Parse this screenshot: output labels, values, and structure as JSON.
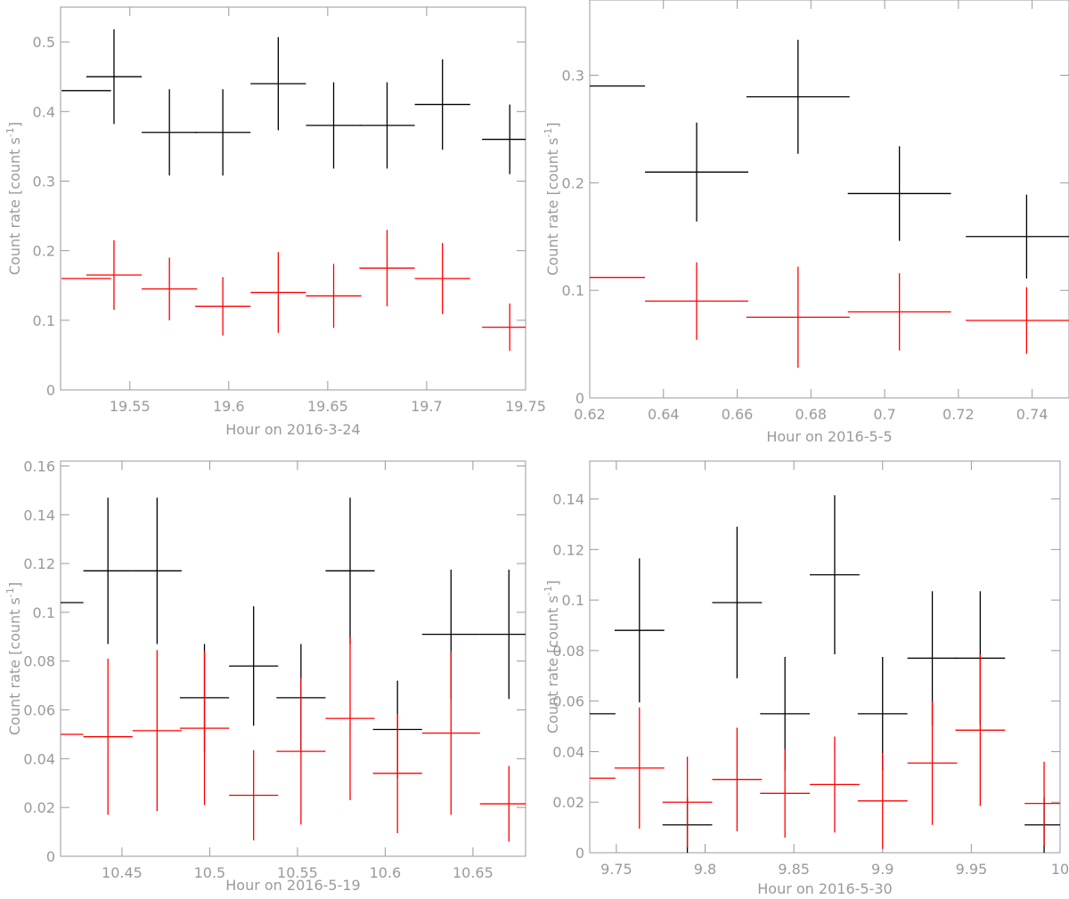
{
  "colors": {
    "series_black": "#000000",
    "series_red": "#ff0000",
    "axes": "#9a9a9a"
  },
  "chart_data": [
    {
      "type": "scatter",
      "error_bars": true,
      "xlabel": "Hour on 2016-3-24",
      "ylabel": "Count rate [count s",
      "ylabel_sup": "-1",
      "ylabel_end": "]",
      "xlim": [
        19.515,
        19.75
      ],
      "ylim": [
        0,
        0.55
      ],
      "xticks": [
        19.55,
        19.6,
        19.65,
        19.7,
        19.75
      ],
      "xtick_labels": [
        "19.55",
        "19.6",
        "19.65",
        "19.7",
        "19.75"
      ],
      "yticks": [
        0,
        0.1,
        0.2,
        0.3,
        0.4,
        0.5
      ],
      "ytick_labels": [
        "0",
        "0.1",
        "0.2",
        "0.3",
        "0.4",
        "0.5"
      ],
      "series": [
        {
          "color": "#000000",
          "points": [
            {
              "x": 19.528,
              "xerr": 0.0125,
              "y": 0.43,
              "yerr": 0
            },
            {
              "x": 19.542,
              "xerr": 0.014,
              "y": 0.45,
              "yerr": 0.068
            },
            {
              "x": 19.57,
              "xerr": 0.014,
              "y": 0.37,
              "yerr": 0.062
            },
            {
              "x": 19.597,
              "xerr": 0.014,
              "y": 0.37,
              "yerr": 0.062
            },
            {
              "x": 19.625,
              "xerr": 0.014,
              "y": 0.44,
              "yerr": 0.067
            },
            {
              "x": 19.653,
              "xerr": 0.014,
              "y": 0.38,
              "yerr": 0.062
            },
            {
              "x": 19.68,
              "xerr": 0.014,
              "y": 0.38,
              "yerr": 0.062
            },
            {
              "x": 19.708,
              "xerr": 0.014,
              "y": 0.41,
              "yerr": 0.065
            },
            {
              "x": 19.742,
              "xerr": 0.014,
              "y": 0.36,
              "yerr": 0.05
            }
          ]
        },
        {
          "color": "#ff0000",
          "points": [
            {
              "x": 19.528,
              "xerr": 0.0125,
              "y": 0.16,
              "yerr": 0
            },
            {
              "x": 19.542,
              "xerr": 0.014,
              "y": 0.165,
              "yerr": 0.05
            },
            {
              "x": 19.57,
              "xerr": 0.014,
              "y": 0.145,
              "yerr": 0.045
            },
            {
              "x": 19.597,
              "xerr": 0.014,
              "y": 0.12,
              "yerr": 0.042
            },
            {
              "x": 19.625,
              "xerr": 0.014,
              "y": 0.14,
              "yerr": 0.058
            },
            {
              "x": 19.653,
              "xerr": 0.014,
              "y": 0.135,
              "yerr": 0.046
            },
            {
              "x": 19.68,
              "xerr": 0.014,
              "y": 0.175,
              "yerr": 0.055
            },
            {
              "x": 19.708,
              "xerr": 0.014,
              "y": 0.16,
              "yerr": 0.051
            },
            {
              "x": 19.742,
              "xerr": 0.014,
              "y": 0.09,
              "yerr": 0.034
            }
          ]
        }
      ]
    },
    {
      "type": "scatter",
      "error_bars": true,
      "xlabel": "Hour on 2016-5-5",
      "ylabel": "Count rate [count s",
      "ylabel_sup": "-1",
      "ylabel_end": "]",
      "xlim": [
        0.62,
        0.75
      ],
      "ylim": [
        0,
        0.37
      ],
      "xticks": [
        0.62,
        0.64,
        0.66,
        0.68,
        0.7,
        0.72,
        0.74
      ],
      "xtick_labels": [
        "0.62",
        "0.64",
        "0.66",
        "0.68",
        "0.7",
        "0.72",
        "0.74"
      ],
      "yticks": [
        0,
        0.1,
        0.2,
        0.3
      ],
      "ytick_labels": [
        "0",
        "0.1",
        "0.2",
        "0.3"
      ],
      "series": [
        {
          "color": "#000000",
          "points": [
            {
              "x": 0.6275,
              "xerr": 0.0075,
              "y": 0.29,
              "yerr": 0
            },
            {
              "x": 0.649,
              "xerr": 0.014,
              "y": 0.21,
              "yerr": 0.046
            },
            {
              "x": 0.6765,
              "xerr": 0.014,
              "y": 0.28,
              "yerr": 0.053
            },
            {
              "x": 0.704,
              "xerr": 0.014,
              "y": 0.19,
              "yerr": 0.044
            },
            {
              "x": 0.7385,
              "xerr": 0.0165,
              "y": 0.15,
              "yerr": 0.039
            }
          ]
        },
        {
          "color": "#ff0000",
          "points": [
            {
              "x": 0.6275,
              "xerr": 0.0075,
              "y": 0.112,
              "yerr": 0
            },
            {
              "x": 0.649,
              "xerr": 0.014,
              "y": 0.09,
              "yerr": 0.036
            },
            {
              "x": 0.6765,
              "xerr": 0.014,
              "y": 0.075,
              "yerr": 0.047
            },
            {
              "x": 0.704,
              "xerr": 0.014,
              "y": 0.08,
              "yerr": 0.036
            },
            {
              "x": 0.7385,
              "xerr": 0.0165,
              "y": 0.072,
              "yerr": 0.031
            }
          ]
        }
      ]
    },
    {
      "type": "scatter",
      "error_bars": true,
      "xlabel": "Hour on 2016-5-19",
      "ylabel": "Count rate [count s",
      "ylabel_sup": "-1",
      "ylabel_end": "]",
      "xlim": [
        10.415,
        10.68
      ],
      "ylim": [
        0,
        0.162
      ],
      "xticks": [
        10.45,
        10.5,
        10.55,
        10.6,
        10.65
      ],
      "xtick_labels": [
        "10.45",
        "10.5",
        "10.55",
        "10.6",
        "10.65"
      ],
      "yticks": [
        0,
        0.02,
        0.04,
        0.06,
        0.08,
        0.1,
        0.12,
        0.14,
        0.16
      ],
      "ytick_labels": [
        "0",
        "0.02",
        "0.04",
        "0.06",
        "0.08",
        "0.1",
        "0.12",
        "0.14",
        "0.16"
      ],
      "series": [
        {
          "color": "#000000",
          "points": [
            {
              "x": 10.421,
              "xerr": 0.007,
              "y": 0.104,
              "yerr": 0
            },
            {
              "x": 10.442,
              "xerr": 0.014,
              "y": 0.117,
              "yerr": 0.03
            },
            {
              "x": 10.47,
              "xerr": 0.014,
              "y": 0.117,
              "yerr": 0.03
            },
            {
              "x": 10.497,
              "xerr": 0.014,
              "y": 0.065,
              "yerr": 0.022
            },
            {
              "x": 10.525,
              "xerr": 0.014,
              "y": 0.078,
              "yerr": 0.0245
            },
            {
              "x": 10.552,
              "xerr": 0.014,
              "y": 0.065,
              "yerr": 0.022
            },
            {
              "x": 10.58,
              "xerr": 0.014,
              "y": 0.117,
              "yerr": 0.03
            },
            {
              "x": 10.607,
              "xerr": 0.014,
              "y": 0.052,
              "yerr": 0.02
            },
            {
              "x": 10.6375,
              "xerr": 0.0165,
              "y": 0.091,
              "yerr": 0.0265
            },
            {
              "x": 10.6705,
              "xerr": 0.0165,
              "y": 0.091,
              "yerr": 0.0265
            }
          ]
        },
        {
          "color": "#ff0000",
          "points": [
            {
              "x": 10.421,
              "xerr": 0.007,
              "y": 0.05,
              "yerr": 0
            },
            {
              "x": 10.442,
              "xerr": 0.014,
              "y": 0.049,
              "yerr": 0.032
            },
            {
              "x": 10.47,
              "xerr": 0.014,
              "y": 0.0515,
              "yerr": 0.033
            },
            {
              "x": 10.497,
              "xerr": 0.014,
              "y": 0.0525,
              "yerr": 0.0315
            },
            {
              "x": 10.525,
              "xerr": 0.014,
              "y": 0.025,
              "yerr": 0.0185
            },
            {
              "x": 10.552,
              "xerr": 0.014,
              "y": 0.043,
              "yerr": 0.03
            },
            {
              "x": 10.58,
              "xerr": 0.014,
              "y": 0.0565,
              "yerr": 0.0335
            },
            {
              "x": 10.607,
              "xerr": 0.014,
              "y": 0.034,
              "yerr": 0.0245
            },
            {
              "x": 10.6375,
              "xerr": 0.0165,
              "y": 0.0505,
              "yerr": 0.0335
            },
            {
              "x": 10.6705,
              "xerr": 0.0165,
              "y": 0.0215,
              "yerr": 0.0155
            }
          ]
        }
      ]
    },
    {
      "type": "scatter",
      "error_bars": true,
      "xlabel": "Hour on 2016-5-30",
      "ylabel": "Count rate [count s",
      "ylabel_sup": "-1",
      "ylabel_end": "]",
      "xlim": [
        9.735,
        10.0
      ],
      "ylim": [
        0,
        0.155
      ],
      "xticks": [
        9.75,
        9.8,
        9.85,
        9.9,
        9.95,
        10
      ],
      "xtick_labels": [
        "9.75",
        "9.8",
        "9.85",
        "9.9",
        "9.95",
        "10"
      ],
      "yticks": [
        0,
        0.02,
        0.04,
        0.06,
        0.08,
        0.1,
        0.12,
        0.14
      ],
      "ytick_labels": [
        "0",
        "0.02",
        "0.04",
        "0.06",
        "0.08",
        "0.1",
        "0.12",
        "0.14"
      ],
      "series": [
        {
          "color": "#000000",
          "points": [
            {
              "x": 9.742,
              "xerr": 0.0075,
              "y": 0.055,
              "yerr": 0
            },
            {
              "x": 9.763,
              "xerr": 0.014,
              "y": 0.088,
              "yerr": 0.0285
            },
            {
              "x": 9.79,
              "xerr": 0.014,
              "y": 0.011,
              "yerr": 0.011
            },
            {
              "x": 9.818,
              "xerr": 0.014,
              "y": 0.099,
              "yerr": 0.03
            },
            {
              "x": 9.845,
              "xerr": 0.014,
              "y": 0.055,
              "yerr": 0.0225
            },
            {
              "x": 9.873,
              "xerr": 0.014,
              "y": 0.11,
              "yerr": 0.0315
            },
            {
              "x": 9.9,
              "xerr": 0.014,
              "y": 0.055,
              "yerr": 0.0225
            },
            {
              "x": 9.928,
              "xerr": 0.014,
              "y": 0.077,
              "yerr": 0.0265
            },
            {
              "x": 9.955,
              "xerr": 0.014,
              "y": 0.077,
              "yerr": 0.0265
            },
            {
              "x": 9.991,
              "xerr": 0.011,
              "y": 0.011,
              "yerr": 0.011
            }
          ]
        },
        {
          "color": "#ff0000",
          "points": [
            {
              "x": 9.742,
              "xerr": 0.0075,
              "y": 0.0295,
              "yerr": 0
            },
            {
              "x": 9.763,
              "xerr": 0.014,
              "y": 0.0335,
              "yerr": 0.024
            },
            {
              "x": 9.79,
              "xerr": 0.014,
              "y": 0.02,
              "yerr": 0.018
            },
            {
              "x": 9.818,
              "xerr": 0.014,
              "y": 0.029,
              "yerr": 0.0205
            },
            {
              "x": 9.845,
              "xerr": 0.014,
              "y": 0.0235,
              "yerr": 0.0175
            },
            {
              "x": 9.873,
              "xerr": 0.014,
              "y": 0.027,
              "yerr": 0.019
            },
            {
              "x": 9.9,
              "xerr": 0.014,
              "y": 0.0205,
              "yerr": 0.019
            },
            {
              "x": 9.928,
              "xerr": 0.014,
              "y": 0.0355,
              "yerr": 0.0245
            },
            {
              "x": 9.955,
              "xerr": 0.014,
              "y": 0.0485,
              "yerr": 0.03
            },
            {
              "x": 9.991,
              "xerr": 0.011,
              "y": 0.0195,
              "yerr": 0.0165
            }
          ]
        }
      ]
    }
  ]
}
